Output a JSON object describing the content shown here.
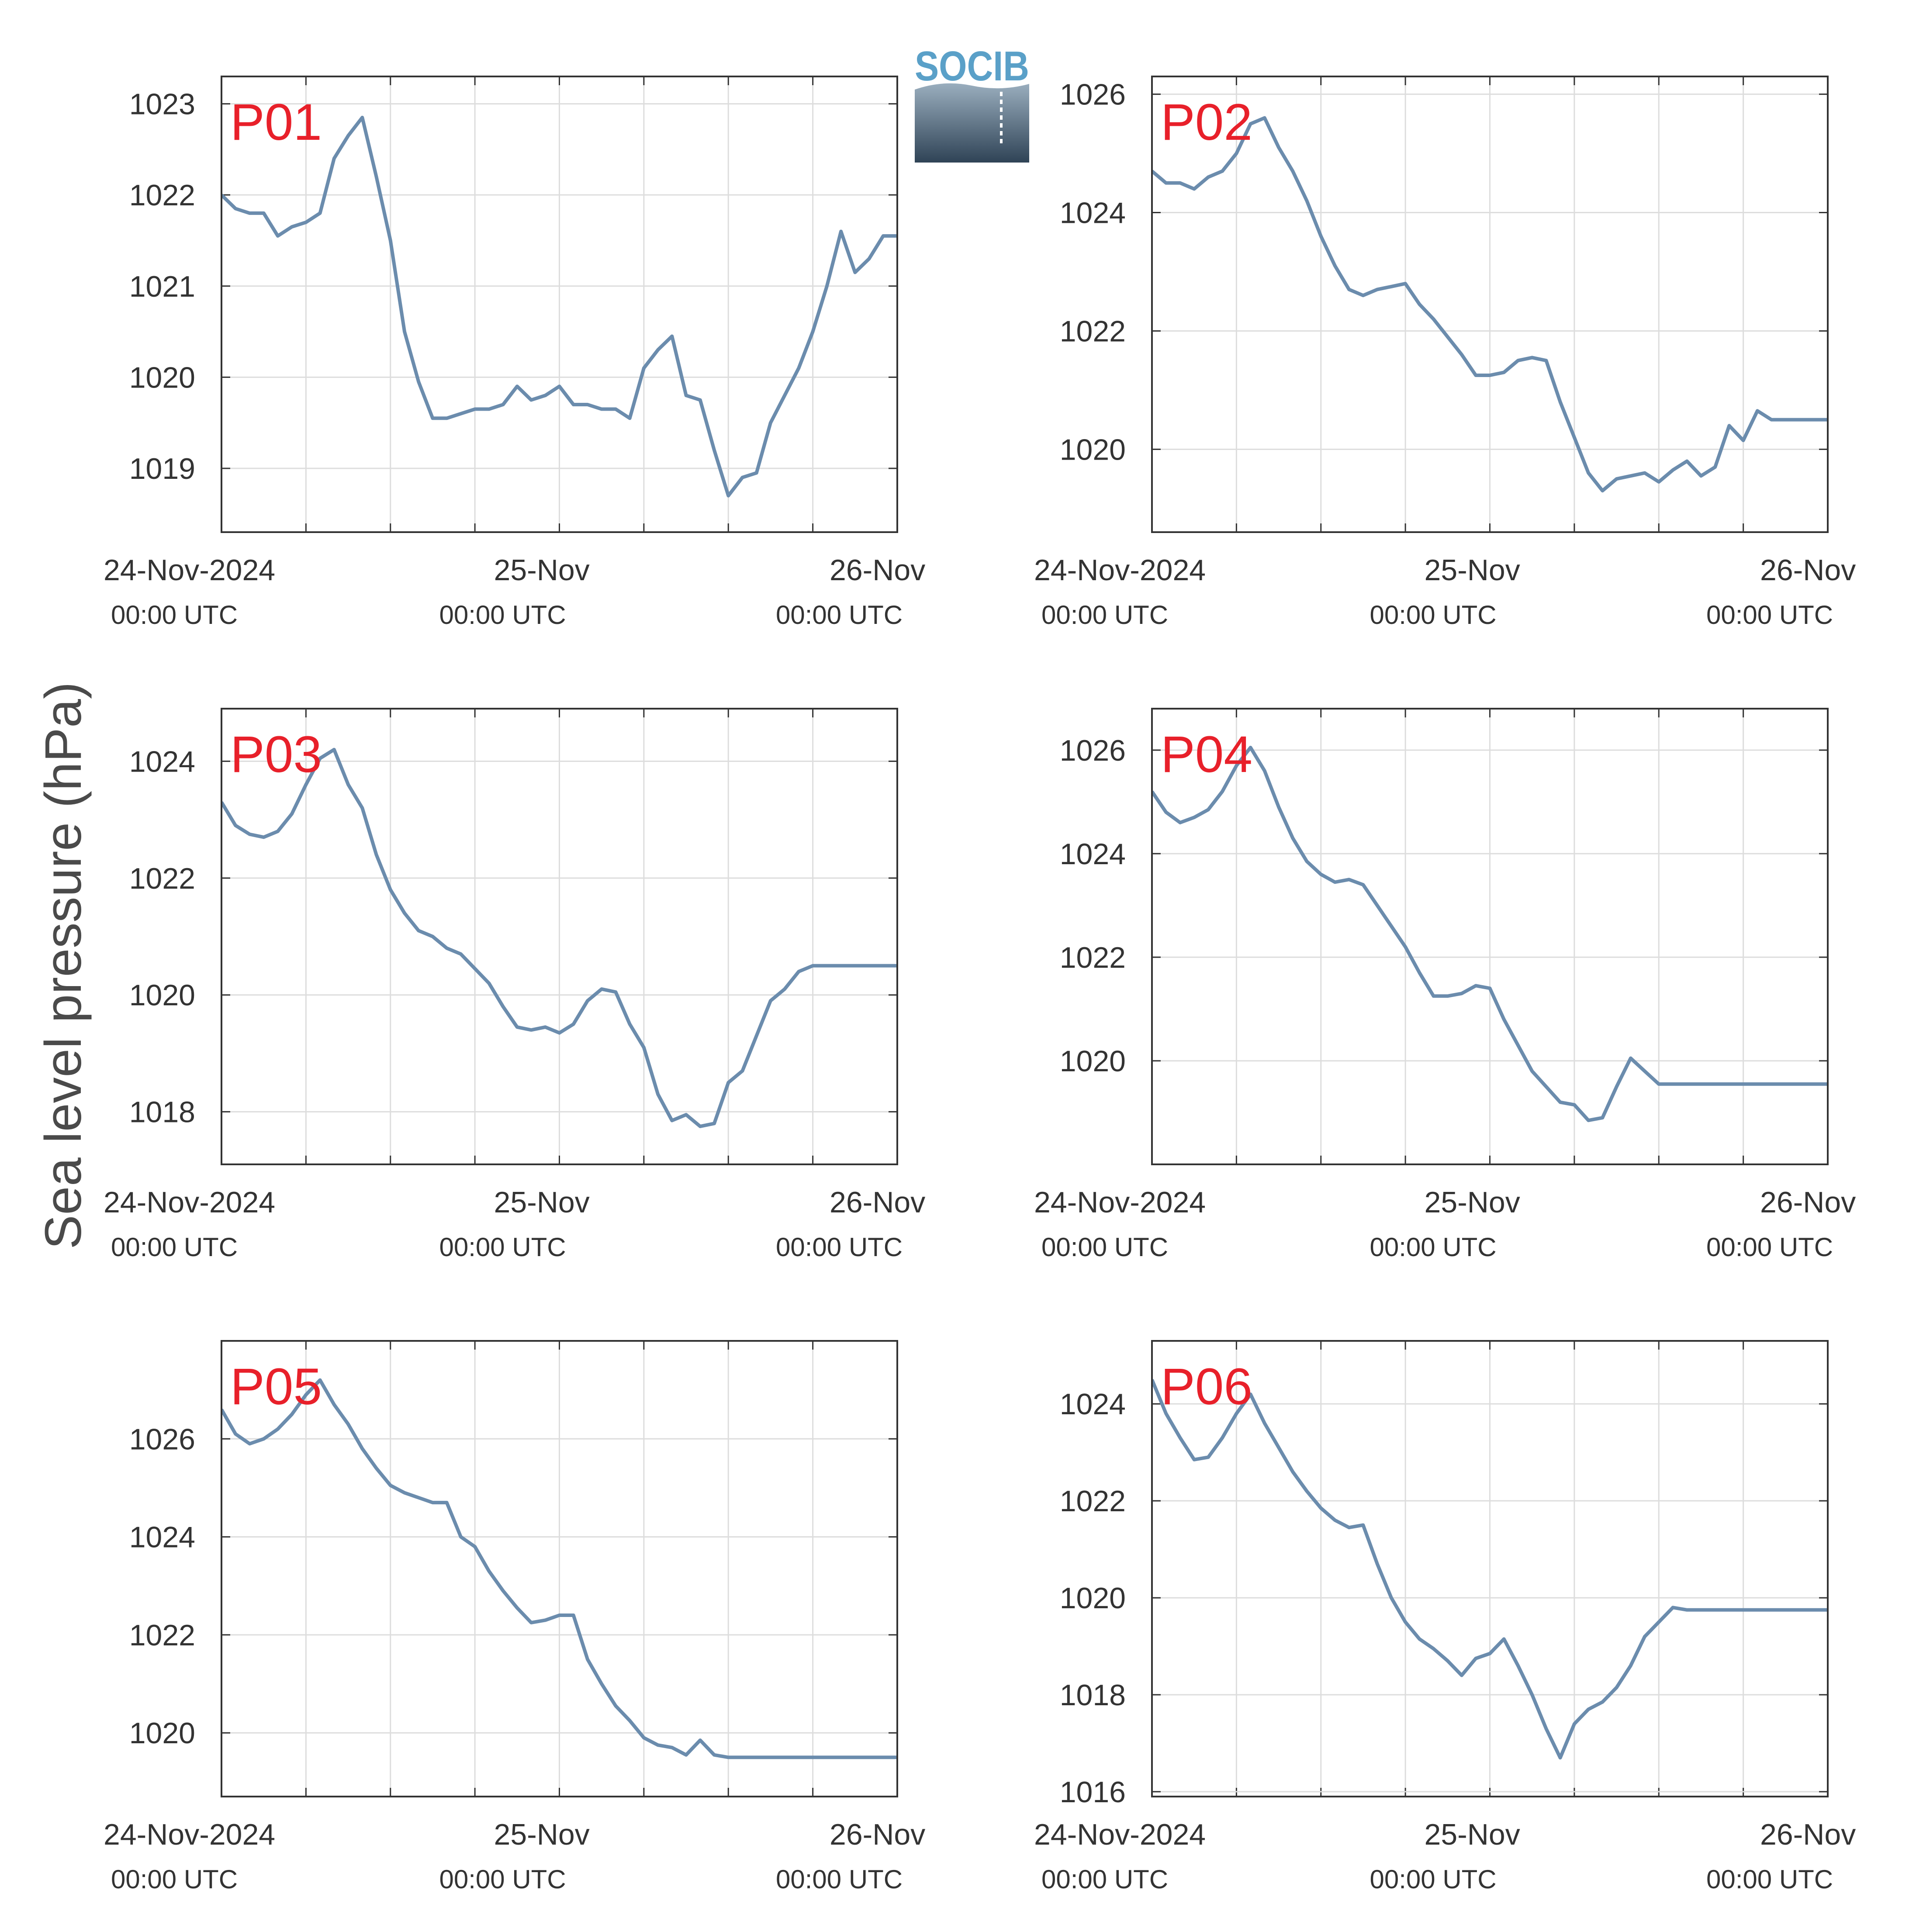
{
  "colors": {
    "line": "#6b8cad",
    "label": "#e8202a",
    "axis": "#333333",
    "grid": "#dddddd",
    "logo_text": "#5aa0c8",
    "logo_top": "#9aaebe",
    "logo_bottom": "#2f4356"
  },
  "logo": {
    "text": "SOCIB"
  },
  "ylabel": "Sea level pressure (hPa)",
  "x_axis": {
    "ticks": [
      {
        "date": "24-Nov-2024",
        "time": "00:00 UTC"
      },
      {
        "date": "25-Nov",
        "time": "00:00 UTC"
      },
      {
        "date": "26-Nov",
        "time": "00:00 UTC"
      }
    ],
    "grid_hours": [
      0,
      6,
      12,
      18,
      24,
      30,
      36,
      42,
      48
    ]
  },
  "chart_data": [
    {
      "type": "line",
      "label": "P01",
      "ylim": [
        1018.3,
        1023.3
      ],
      "yticks": [
        1019,
        1020,
        1021,
        1022,
        1023
      ],
      "grid": true,
      "x_hours": [
        0,
        1,
        2,
        3,
        4,
        5,
        6,
        7,
        8,
        9,
        10,
        11,
        12,
        13,
        14,
        15,
        16,
        17,
        18,
        19,
        20,
        21,
        22,
        23,
        24,
        25,
        26,
        27,
        28,
        29,
        30,
        31,
        32,
        33,
        34,
        35,
        36,
        37,
        38,
        39,
        40,
        41,
        42,
        43,
        44,
        45,
        46,
        47,
        48
      ],
      "values": [
        1022.0,
        1021.85,
        1021.8,
        1021.8,
        1021.55,
        1021.65,
        1021.7,
        1021.8,
        1022.4,
        1022.65,
        1022.85,
        1022.2,
        1021.5,
        1020.5,
        1019.95,
        1019.55,
        1019.55,
        1019.6,
        1019.65,
        1019.65,
        1019.7,
        1019.9,
        1019.75,
        1019.8,
        1019.9,
        1019.7,
        1019.7,
        1019.65,
        1019.65,
        1019.55,
        1020.1,
        1020.3,
        1020.45,
        1019.8,
        1019.75,
        1019.2,
        1018.7,
        1018.9,
        1018.95,
        1019.5,
        1019.8,
        1020.1,
        1020.5,
        1021.0,
        1021.6,
        1021.15,
        1021.3,
        1021.55,
        1021.55
      ]
    },
    {
      "type": "line",
      "label": "P02",
      "ylim": [
        1018.6,
        1026.3
      ],
      "yticks": [
        1020,
        1022,
        1024,
        1026
      ],
      "grid": true,
      "x_hours": [
        0,
        1,
        2,
        3,
        4,
        5,
        6,
        7,
        8,
        9,
        10,
        11,
        12,
        13,
        14,
        15,
        16,
        17,
        18,
        19,
        20,
        21,
        22,
        23,
        24,
        25,
        26,
        27,
        28,
        29,
        30,
        31,
        32,
        33,
        34,
        35,
        36,
        37,
        38,
        39,
        40,
        41,
        42,
        43,
        44,
        45,
        46,
        47,
        48
      ],
      "values": [
        1024.7,
        1024.5,
        1024.5,
        1024.4,
        1024.6,
        1024.7,
        1025.0,
        1025.5,
        1025.6,
        1025.1,
        1024.7,
        1024.2,
        1023.6,
        1023.1,
        1022.7,
        1022.6,
        1022.7,
        1022.75,
        1022.8,
        1022.45,
        1022.2,
        1021.9,
        1021.6,
        1021.25,
        1021.25,
        1021.3,
        1021.5,
        1021.55,
        1021.5,
        1020.8,
        1020.2,
        1019.6,
        1019.3,
        1019.5,
        1019.55,
        1019.6,
        1019.45,
        1019.65,
        1019.8,
        1019.55,
        1019.7,
        1020.4,
        1020.15,
        1020.65,
        1020.5,
        1020.5,
        1020.5,
        1020.5,
        1020.5
      ]
    },
    {
      "type": "line",
      "label": "P03",
      "ylim": [
        1017.1,
        1024.9
      ],
      "yticks": [
        1018,
        1020,
        1022,
        1024
      ],
      "grid": true,
      "x_hours": [
        0,
        1,
        2,
        3,
        4,
        5,
        6,
        7,
        8,
        9,
        10,
        11,
        12,
        13,
        14,
        15,
        16,
        17,
        18,
        19,
        20,
        21,
        22,
        23,
        24,
        25,
        26,
        27,
        28,
        29,
        30,
        31,
        32,
        33,
        34,
        35,
        36,
        37,
        38,
        39,
        40,
        41,
        42,
        43,
        44,
        45,
        46,
        47,
        48
      ],
      "values": [
        1023.3,
        1022.9,
        1022.75,
        1022.7,
        1022.8,
        1023.1,
        1023.6,
        1024.05,
        1024.2,
        1023.6,
        1023.2,
        1022.4,
        1021.8,
        1021.4,
        1021.1,
        1021.0,
        1020.8,
        1020.7,
        1020.45,
        1020.2,
        1019.8,
        1019.45,
        1019.4,
        1019.45,
        1019.35,
        1019.5,
        1019.9,
        1020.1,
        1020.05,
        1019.5,
        1019.1,
        1018.3,
        1017.85,
        1017.95,
        1017.75,
        1017.8,
        1018.5,
        1018.7,
        1019.3,
        1019.9,
        1020.1,
        1020.4,
        1020.5,
        1020.5,
        1020.5,
        1020.5,
        1020.5,
        1020.5,
        1020.5
      ]
    },
    {
      "type": "line",
      "label": "P04",
      "ylim": [
        1018.0,
        1026.8
      ],
      "yticks": [
        1020,
        1022,
        1024,
        1026
      ],
      "grid": true,
      "x_hours": [
        0,
        1,
        2,
        3,
        4,
        5,
        6,
        7,
        8,
        9,
        10,
        11,
        12,
        13,
        14,
        15,
        16,
        17,
        18,
        19,
        20,
        21,
        22,
        23,
        24,
        25,
        26,
        27,
        28,
        29,
        30,
        31,
        32,
        33,
        34,
        35,
        36,
        37,
        38,
        39,
        40,
        41,
        42,
        43,
        44,
        45,
        46,
        47,
        48
      ],
      "values": [
        1025.2,
        1024.8,
        1024.6,
        1024.7,
        1024.85,
        1025.2,
        1025.7,
        1026.05,
        1025.6,
        1024.9,
        1024.3,
        1023.85,
        1023.6,
        1023.45,
        1023.5,
        1023.4,
        1023.0,
        1022.6,
        1022.2,
        1021.7,
        1021.25,
        1021.25,
        1021.3,
        1021.45,
        1021.4,
        1020.8,
        1020.3,
        1019.8,
        1019.5,
        1019.2,
        1019.15,
        1018.85,
        1018.9,
        1019.5,
        1020.05,
        1019.8,
        1019.55,
        1019.55,
        1019.55,
        1019.55,
        1019.55,
        1019.55,
        1019.55,
        1019.55,
        1019.55,
        1019.55,
        1019.55,
        1019.55,
        1019.55
      ]
    },
    {
      "type": "line",
      "label": "P05",
      "ylim": [
        1018.7,
        1028.0
      ],
      "yticks": [
        1020,
        1022,
        1024,
        1026
      ],
      "grid": true,
      "x_hours": [
        0,
        1,
        2,
        3,
        4,
        5,
        6,
        7,
        8,
        9,
        10,
        11,
        12,
        13,
        14,
        15,
        16,
        17,
        18,
        19,
        20,
        21,
        22,
        23,
        24,
        25,
        26,
        27,
        28,
        29,
        30,
        31,
        32,
        33,
        34,
        35,
        36,
        37,
        38,
        39,
        40,
        41,
        42,
        43,
        44,
        45,
        46,
        47,
        48
      ],
      "values": [
        1026.6,
        1026.1,
        1025.9,
        1026.0,
        1026.2,
        1026.5,
        1026.9,
        1027.2,
        1026.7,
        1026.3,
        1025.8,
        1025.4,
        1025.05,
        1024.9,
        1024.8,
        1024.7,
        1024.7,
        1024.0,
        1023.8,
        1023.3,
        1022.9,
        1022.55,
        1022.25,
        1022.3,
        1022.4,
        1022.4,
        1021.5,
        1021.0,
        1020.55,
        1020.25,
        1019.9,
        1019.75,
        1019.7,
        1019.55,
        1019.85,
        1019.55,
        1019.5,
        1019.5,
        1019.5,
        1019.5,
        1019.5,
        1019.5,
        1019.5,
        1019.5,
        1019.5,
        1019.5,
        1019.5,
        1019.5,
        1019.5
      ]
    },
    {
      "type": "line",
      "label": "P06",
      "ylim": [
        1015.9,
        1025.3
      ],
      "yticks": [
        1016,
        1018,
        1020,
        1022,
        1024
      ],
      "grid": true,
      "x_hours": [
        0,
        1,
        2,
        3,
        4,
        5,
        6,
        7,
        8,
        9,
        10,
        11,
        12,
        13,
        14,
        15,
        16,
        17,
        18,
        19,
        20,
        21,
        22,
        23,
        24,
        25,
        26,
        27,
        28,
        29,
        30,
        31,
        32,
        33,
        34,
        35,
        36,
        37,
        38,
        39,
        40,
        41,
        42,
        43,
        44,
        45,
        46,
        47,
        48
      ],
      "values": [
        1024.5,
        1023.8,
        1023.3,
        1022.85,
        1022.9,
        1023.3,
        1023.8,
        1024.2,
        1023.6,
        1023.1,
        1022.6,
        1022.2,
        1021.85,
        1021.6,
        1021.45,
        1021.5,
        1020.7,
        1020.0,
        1019.5,
        1019.15,
        1018.95,
        1018.7,
        1018.4,
        1018.75,
        1018.85,
        1019.15,
        1018.6,
        1018.0,
        1017.3,
        1016.7,
        1017.4,
        1017.7,
        1017.85,
        1018.15,
        1018.6,
        1019.2,
        1019.5,
        1019.8,
        1019.75,
        1019.75,
        1019.75,
        1019.75,
        1019.75,
        1019.75,
        1019.75,
        1019.75,
        1019.75,
        1019.75,
        1019.75
      ]
    }
  ]
}
